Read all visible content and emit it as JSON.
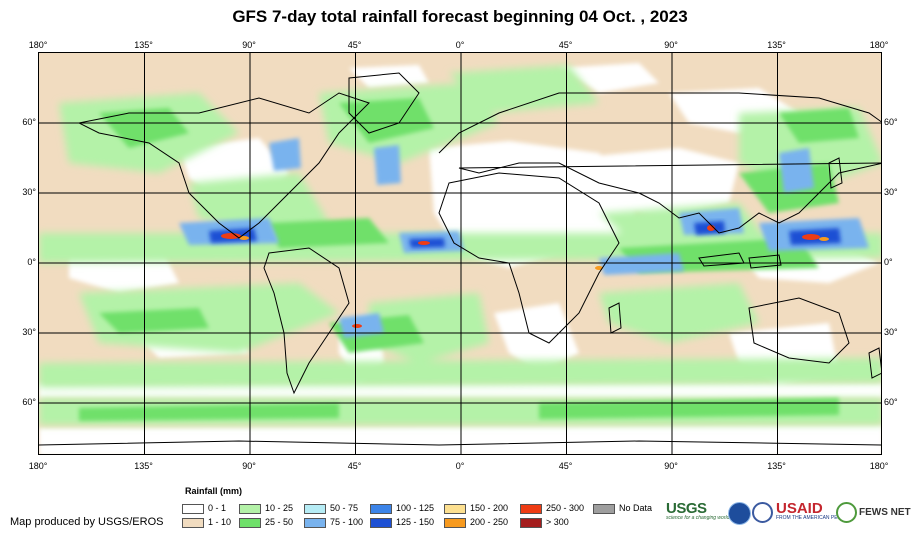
{
  "title": "GFS 7-day total rainfall forecast beginning 04 Oct. , 2023",
  "lon_labels": [
    "180°",
    "135°",
    "90°",
    "45°",
    "0°",
    "45°",
    "90°",
    "135°",
    "180°"
  ],
  "lat_labels": [
    "60°",
    "30°",
    "0°",
    "30°",
    "60°"
  ],
  "legend": {
    "title": "Rainfall (mm)",
    "items": [
      {
        "label": "0 - 1",
        "color": "#ffffff"
      },
      {
        "label": "1 - 10",
        "color": "#f1dcc0"
      },
      {
        "label": "10 - 25",
        "color": "#b4f2a8"
      },
      {
        "label": "25 - 50",
        "color": "#6fe06a"
      },
      {
        "label": "50 - 75",
        "color": "#b6ecf5"
      },
      {
        "label": "75 - 100",
        "color": "#79b3ee"
      },
      {
        "label": "100 - 125",
        "color": "#3c84e8"
      },
      {
        "label": "125 - 150",
        "color": "#1d50d4"
      },
      {
        "label": "150 - 200",
        "color": "#fde090"
      },
      {
        "label": "200 - 250",
        "color": "#f79a1e"
      },
      {
        "label": "250 - 300",
        "color": "#ee3c14"
      },
      {
        "label": "> 300",
        "color": "#a41d1d"
      },
      {
        "label": "No Data",
        "color": "#9e9e9e"
      }
    ]
  },
  "credit": "Map produced by USGS/EROS",
  "logos": {
    "usgs": "USGS",
    "usgs_tagline": "science for a changing world",
    "usaid": "USAID",
    "usaid_tagline": "FROM THE AMERICAN PEOPLE",
    "fewsnet": "FEWS NET"
  }
}
